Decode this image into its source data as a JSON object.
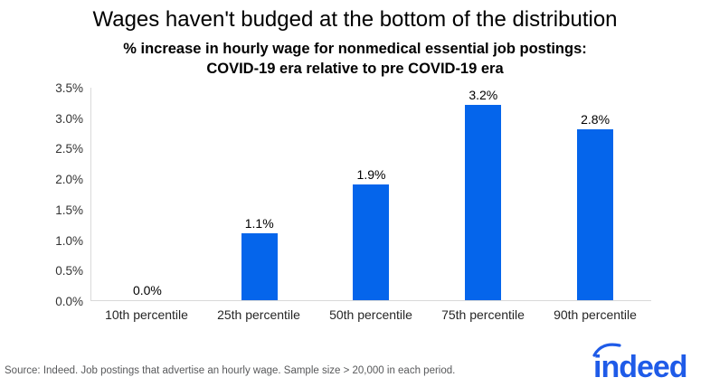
{
  "colors": {
    "bar": "#0565EB",
    "axis_line": "#D9D9D9",
    "logo": "#1F5BE8",
    "source_text": "#58595B"
  },
  "source_note": "Source: Indeed. Job postings that advertise an hourly wage. Sample size > 20,000 in each period.",
  "logo_text": "indeed",
  "chart_data": {
    "type": "bar",
    "title": "Wages haven't budged at the bottom of the distribution",
    "subtitle_line1": "% increase in hourly wage for nonmedical essential job postings:",
    "subtitle_line2": "COVID-19 era relative to pre COVID-19 era",
    "categories": [
      "10th percentile",
      "25th percentile",
      "50th percentile",
      "75th percentile",
      "90th percentile"
    ],
    "values": [
      0.0,
      1.1,
      1.9,
      3.2,
      2.8
    ],
    "value_labels": [
      "0.0%",
      "1.1%",
      "1.9%",
      "3.2%",
      "2.8%"
    ],
    "xlabel": "",
    "ylabel": "",
    "ylim": [
      0,
      3.5
    ],
    "ytick_values": [
      0.0,
      0.5,
      1.0,
      1.5,
      2.0,
      2.5,
      3.0,
      3.5
    ],
    "ytick_labels": [
      "0.0%",
      "0.5%",
      "1.0%",
      "1.5%",
      "2.0%",
      "2.5%",
      "3.0%",
      "3.5%"
    ],
    "grid": false,
    "legend": "none",
    "bar_color": "#0565EB"
  }
}
